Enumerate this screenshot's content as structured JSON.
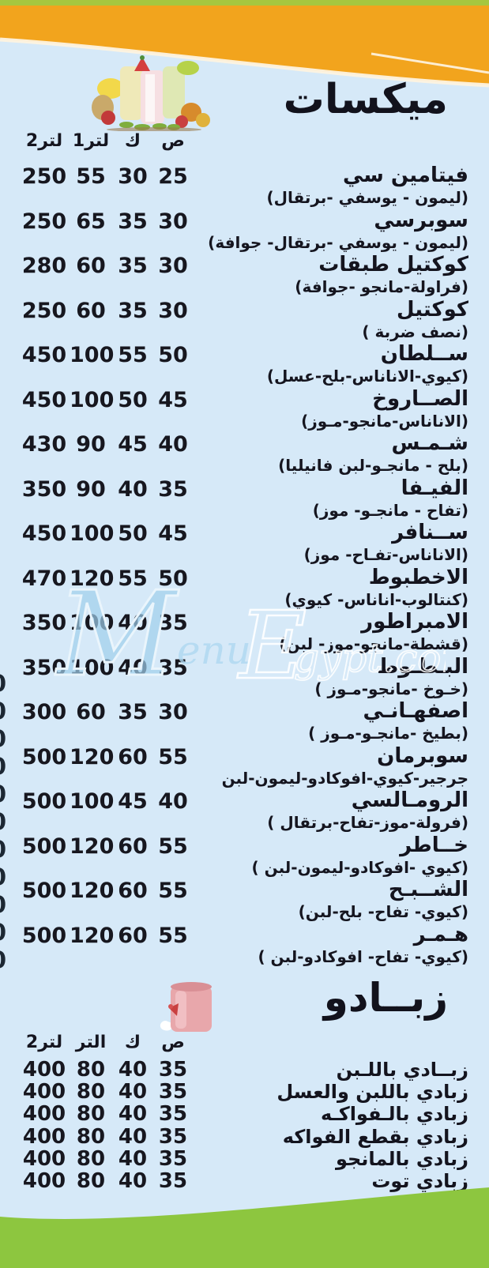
{
  "watermark": {
    "m": "M",
    "enu": "enu",
    "e": "E",
    "rest": "gypt.com"
  },
  "decor": {
    "edge_digits": "00000000000"
  },
  "sections": [
    {
      "title": "ميكسات",
      "columns": [
        "ص",
        "ك",
        "1لتر",
        "2لتر"
      ],
      "items": [
        {
          "name": "فيتامين سي",
          "desc": "(ليمون - يوسفي -برتقال)",
          "prices": [
            "25",
            "30",
            "55",
            "250"
          ]
        },
        {
          "name": "سوبرسي",
          "desc": "(ليمون - يوسفي -برتقال- جوافة)",
          "prices": [
            "30",
            "35",
            "65",
            "250"
          ]
        },
        {
          "name": "كوكتيل طبقات",
          "desc": "(فراولة-مانجو -جوافة)",
          "prices": [
            "30",
            "35",
            "60",
            "280"
          ]
        },
        {
          "name": "كوكتيل",
          "desc": "(نصف ضربة )",
          "prices": [
            "30",
            "35",
            "60",
            "250"
          ]
        },
        {
          "name": "ســلطان",
          "desc": "(كيوي-الاناناس-بلح-عسل)",
          "prices": [
            "50",
            "55",
            "100",
            "450"
          ]
        },
        {
          "name": "الصــاروخ",
          "desc": "(الاناناس-مانجو-مـوز)",
          "prices": [
            "45",
            "50",
            "100",
            "450"
          ]
        },
        {
          "name": "شـمـس",
          "desc": "(بلح - مانجـو-لبن فانيليا)",
          "prices": [
            "40",
            "45",
            "90",
            "430"
          ]
        },
        {
          "name": "الفيـفا",
          "desc": "(تفاح - مانجـو- موز)",
          "prices": [
            "35",
            "40",
            "90",
            "350"
          ]
        },
        {
          "name": "ســنافر",
          "desc": "(الاناناس-تفـاح- موز)",
          "prices": [
            "45",
            "50",
            "100",
            "450"
          ]
        },
        {
          "name": "الاخطبوط",
          "desc": "(كنتالوب-اناناس- كيوي)",
          "prices": [
            "50",
            "55",
            "120",
            "470"
          ]
        },
        {
          "name": "الامبراطور",
          "desc": "(قشطة-مانجو-موز- لبن)",
          "prices": [
            "35",
            "40",
            "100",
            "350"
          ]
        },
        {
          "name": "البـطـوط",
          "desc": "(خـوخ -مانجو-مـوز )",
          "prices": [
            "35",
            "40",
            "100",
            "350"
          ]
        },
        {
          "name": "اصفهـانـي",
          "desc": "(بطيخ -مانجـو-مـوز )",
          "prices": [
            "30",
            "35",
            "60",
            "300"
          ]
        },
        {
          "name": "سوبرمان",
          "desc": "جرجير-كيوي-افوكادو-ليمون-لبن",
          "prices": [
            "55",
            "60",
            "120",
            "500"
          ]
        },
        {
          "name": "الرومـالسي",
          "desc": "(فرولة-موز-تفاح-برتقال )",
          "prices": [
            "40",
            "45",
            "100",
            "500"
          ]
        },
        {
          "name": "خــاطر",
          "desc": "(كيوي -افوكادو-ليمون-لبن )",
          "prices": [
            "55",
            "60",
            "120",
            "500"
          ]
        },
        {
          "name": "الشــبـح",
          "desc": "(كيوي- تفاح- بلح-لبن)",
          "prices": [
            "55",
            "60",
            "120",
            "500"
          ]
        },
        {
          "name": "هـمـر",
          "desc": "(كيوي- تفاح- افوكادو-لبن )",
          "prices": [
            "55",
            "60",
            "120",
            "500"
          ]
        }
      ]
    },
    {
      "title": "زبــادو",
      "columns": [
        "ص",
        "ك",
        "التر",
        "2لتر"
      ],
      "items": [
        {
          "name": "زبــادي باللـبن",
          "desc": "",
          "prices": [
            "35",
            "40",
            "80",
            "400"
          ]
        },
        {
          "name": "زبادي باللبن والعسل",
          "desc": "",
          "prices": [
            "35",
            "40",
            "80",
            "400"
          ]
        },
        {
          "name": "زبادي بالـفواكـه",
          "desc": "",
          "prices": [
            "35",
            "40",
            "80",
            "400"
          ]
        },
        {
          "name": "زبادي بقطع الفواكه",
          "desc": "",
          "prices": [
            "35",
            "40",
            "80",
            "400"
          ]
        },
        {
          "name": "زبادي بالمانجو",
          "desc": "",
          "prices": [
            "35",
            "40",
            "80",
            "400"
          ]
        },
        {
          "name": "زبادي توت",
          "desc": "",
          "prices": [
            "35",
            "40",
            "80",
            "400"
          ]
        }
      ]
    }
  ],
  "colors": {
    "background": "#d6e9f8",
    "top_strip_green": "#a6c73f",
    "orange_band": "#f2a41d",
    "footer_green": "#8dc63f",
    "text": "#15151f",
    "watermark_blue": "#9fceeb"
  }
}
